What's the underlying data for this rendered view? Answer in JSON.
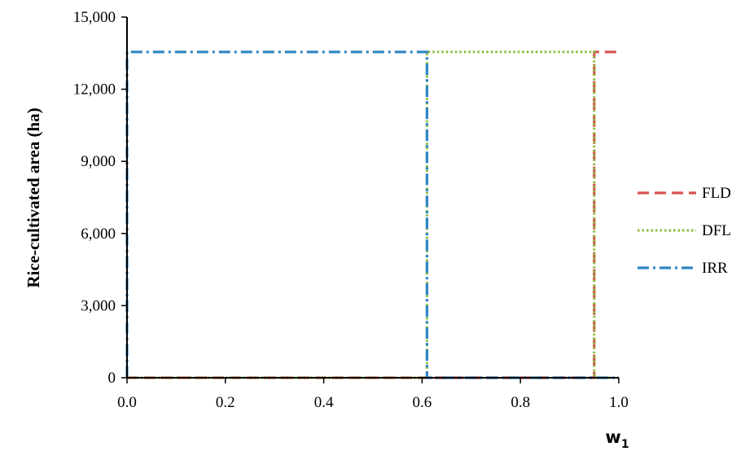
{
  "chart_data": {
    "type": "line",
    "title": "",
    "xlabel": "w",
    "xlabel_sub": "1",
    "ylabel": "Rice-cultivated area (ha)",
    "xlim": [
      0,
      1
    ],
    "ylim": [
      0,
      15000
    ],
    "x_ticks": [
      0,
      0.2,
      0.4,
      0.6,
      0.8,
      1.0
    ],
    "x_tick_labels": [
      "0.0",
      "0.2",
      "0.4",
      "0.6",
      "0.8",
      "1.0"
    ],
    "y_ticks": [
      0,
      3000,
      6000,
      9000,
      12000,
      15000
    ],
    "y_tick_labels": [
      "0",
      "3,000",
      "6,000",
      "9,000",
      "12,000",
      "15,000"
    ],
    "grid": false,
    "legend_position": "right",
    "series": [
      {
        "name": "FLD",
        "color": "#d9534f",
        "style": "dashed",
        "x": [
          0,
          0.95,
          0.95,
          1.0
        ],
        "y": [
          0,
          0,
          13550,
          13550
        ]
      },
      {
        "name": "DFL",
        "color": "#8dbb3c",
        "style": "dotted",
        "x": [
          0,
          0.61,
          0.61,
          0.95,
          0.95,
          1.0
        ],
        "y": [
          0,
          0,
          13550,
          13550,
          0,
          0
        ]
      },
      {
        "name": "IRR",
        "color": "#2f86c4",
        "style": "dashdot",
        "x": [
          0,
          0,
          0.61,
          0.61,
          1.0
        ],
        "y": [
          0,
          13550,
          13550,
          0,
          0
        ]
      }
    ]
  }
}
